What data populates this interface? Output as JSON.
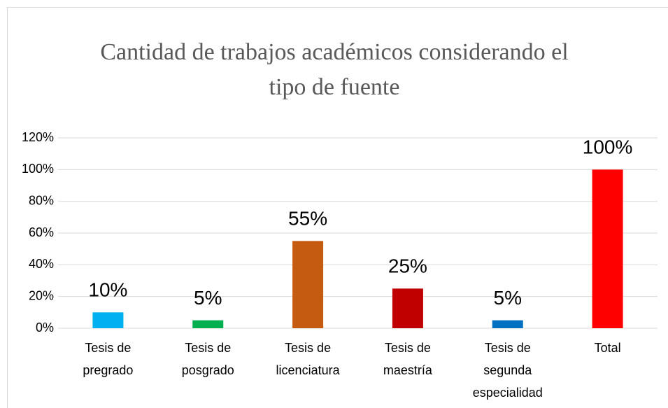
{
  "chart_data": {
    "type": "bar",
    "title": [
      "Cantidad de trabajos académicos considerando el",
      "tipo de fuente"
    ],
    "categories": [
      "Tesis de\npregrado",
      "Tesis de\nposgrado",
      "Tesis de\nlicenciatura",
      "Tesis de\nmaestría",
      "Tesis de\nsegunda\nespecialidad",
      "Total"
    ],
    "values": [
      10,
      5,
      55,
      25,
      5,
      100
    ],
    "value_labels": [
      "10%",
      "5%",
      "55%",
      "25%",
      "5%",
      "100%"
    ],
    "colors": [
      "#00b0f0",
      "#00b050",
      "#c55a11",
      "#c00000",
      "#0070c0",
      "#ff0000"
    ],
    "ylim": [
      0,
      120
    ],
    "yticks": [
      {
        "value": 0,
        "label": "0%"
      },
      {
        "value": 20,
        "label": "20%"
      },
      {
        "value": 40,
        "label": "40%"
      },
      {
        "value": 60,
        "label": "60%"
      },
      {
        "value": 80,
        "label": "80%"
      },
      {
        "value": 100,
        "label": "100%"
      },
      {
        "value": 120,
        "label": "120%"
      }
    ],
    "grid": true
  }
}
